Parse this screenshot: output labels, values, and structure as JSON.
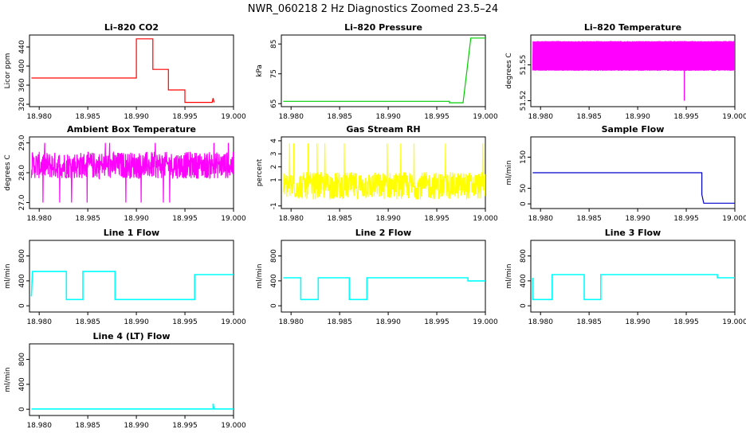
{
  "figure": {
    "title": "NWR_060218  2 Hz Diagnostics Zoomed 23.5–24"
  },
  "chart_data": [
    {
      "type": "line",
      "title": "Li–820 CO2",
      "ylabel": "Licor ppm",
      "xlim": [
        18.979,
        19.0
      ],
      "ylim": [
        315,
        465
      ],
      "xticks": [
        "18.980",
        "18.985",
        "18.990",
        "18.995",
        "19.000"
      ],
      "yticks": [
        "320",
        "360",
        "400",
        "440"
      ],
      "color": "#ff0000",
      "series": [
        {
          "x": [
            18.9792,
            18.99,
            18.99,
            18.9917,
            18.9917,
            18.9933,
            18.9933,
            18.995,
            18.995,
            18.9978,
            18.9979,
            18.998
          ],
          "y": [
            375,
            375,
            457,
            457,
            393,
            393,
            350,
            350,
            324,
            324,
            333,
            324
          ]
        }
      ]
    },
    {
      "type": "line",
      "title": "Li–820 Pressure",
      "ylabel": "kPa",
      "xlim": [
        18.979,
        19.0
      ],
      "ylim": [
        64,
        88
      ],
      "xticks": [
        "18.980",
        "18.985",
        "18.990",
        "18.995",
        "19.000"
      ],
      "yticks": [
        "65",
        "75",
        "85"
      ],
      "color": "#00cc00",
      "series": [
        {
          "x": [
            18.9792,
            18.9963,
            18.9963,
            18.9977,
            18.9981,
            18.9985,
            19.0
          ],
          "y": [
            65.8,
            65.8,
            65.3,
            65.3,
            76,
            87,
            87
          ]
        }
      ]
    },
    {
      "type": "line",
      "title": "Li–820 Temperature",
      "ylabel": "degrees C",
      "xlim": [
        18.979,
        19.0
      ],
      "ylim": [
        51.515,
        51.575
      ],
      "xticks": [
        "18.980",
        "18.985",
        "18.990",
        "18.995",
        "19.000"
      ],
      "yticks": [
        "51.52",
        "51.55"
      ],
      "color": "#ff00ff",
      "series": [
        {
          "x": [
            18.9792,
            19.0
          ],
          "y": [
            51.545,
            51.57
          ]
        }
      ]
    },
    {
      "type": "line",
      "title": "Ambient Box Temperature",
      "ylabel": "degrees C",
      "xlim": [
        18.979,
        19.0
      ],
      "ylim": [
        26.8,
        29.2
      ],
      "xticks": [
        "18.980",
        "18.985",
        "18.990",
        "18.995",
        "19.000"
      ],
      "yticks": [
        "27.0",
        "28.0",
        "29.0"
      ],
      "color": "#ff00ff",
      "series": [
        {
          "x": [
            18.9792,
            19.0
          ],
          "y": [
            27.8,
            28.7
          ]
        }
      ]
    },
    {
      "type": "line",
      "title": "Gas Stream RH",
      "ylabel": "percent",
      "xlim": [
        18.979,
        19.0
      ],
      "ylim": [
        -1.2,
        4.3
      ],
      "xticks": [
        "18.980",
        "18.985",
        "18.990",
        "18.995",
        "19.000"
      ],
      "yticks": [
        "-1",
        "1",
        "2",
        "3",
        "4"
      ],
      "color": "#ffff00",
      "series": [
        {
          "x": [
            18.9792,
            19.0
          ],
          "y": [
            -0.5,
            1.6
          ]
        }
      ]
    },
    {
      "type": "line",
      "title": "Sample Flow",
      "ylabel": "ml/min",
      "xlim": [
        18.979,
        19.0
      ],
      "ylim": [
        -15,
        215
      ],
      "xticks": [
        "18.980",
        "18.985",
        "18.990",
        "18.995",
        "19.000"
      ],
      "yticks": [
        "0",
        "50",
        "150"
      ],
      "color": "#0000cc",
      "series": [
        {
          "x": [
            18.9792,
            18.9966,
            18.9966,
            18.9968,
            19.0
          ],
          "y": [
            100,
            100,
            30,
            2,
            2
          ]
        }
      ]
    },
    {
      "type": "line",
      "title": "Line 1 Flow",
      "ylabel": "ml/min",
      "xlim": [
        18.979,
        19.0
      ],
      "ylim": [
        -100,
        1050
      ],
      "xticks": [
        "18.980",
        "18.985",
        "18.990",
        "18.995",
        "19.000"
      ],
      "yticks": [
        "0",
        "400",
        "800"
      ],
      "color": "#00ffff",
      "series": [
        {
          "x": [
            18.9792,
            18.9793,
            18.9828,
            18.9828,
            18.9845,
            18.9845,
            18.9878,
            18.9878,
            18.996,
            18.996,
            19.0
          ],
          "y": [
            150,
            550,
            550,
            100,
            100,
            550,
            550,
            100,
            100,
            500,
            500
          ]
        }
      ]
    },
    {
      "type": "line",
      "title": "Line 2 Flow",
      "ylabel": "ml/min",
      "xlim": [
        18.979,
        19.0
      ],
      "ylim": [
        -100,
        1050
      ],
      "xticks": [
        "18.980",
        "18.985",
        "18.990",
        "18.995",
        "19.000"
      ],
      "yticks": [
        "0",
        "400",
        "800"
      ],
      "color": "#00ffff",
      "series": [
        {
          "x": [
            18.9792,
            18.981,
            18.981,
            18.9828,
            18.9828,
            18.986,
            18.986,
            18.9878,
            18.9878,
            18.9982,
            18.9982,
            19.0
          ],
          "y": [
            450,
            450,
            100,
            100,
            450,
            450,
            100,
            100,
            450,
            450,
            400,
            400
          ]
        }
      ]
    },
    {
      "type": "line",
      "title": "Line 3 Flow",
      "ylabel": "ml/min",
      "xlim": [
        18.979,
        19.0
      ],
      "ylim": [
        -100,
        1050
      ],
      "xticks": [
        "18.980",
        "18.985",
        "18.990",
        "18.995",
        "19.000"
      ],
      "yticks": [
        "0",
        "400",
        "800"
      ],
      "color": "#00ffff",
      "series": [
        {
          "x": [
            18.9792,
            18.9792,
            18.9812,
            18.9812,
            18.9845,
            18.9845,
            18.9862,
            18.9862,
            18.9982,
            18.9982,
            19.0
          ],
          "y": [
            450,
            100,
            100,
            500,
            500,
            100,
            100,
            500,
            500,
            450,
            450
          ]
        }
      ]
    },
    {
      "type": "line",
      "title": "Line 4 (LT) Flow",
      "ylabel": "ml/min",
      "xlim": [
        18.979,
        19.0
      ],
      "ylim": [
        -100,
        1050
      ],
      "xticks": [
        "18.980",
        "18.985",
        "18.990",
        "18.995",
        "19.000"
      ],
      "yticks": [
        "0",
        "400",
        "800"
      ],
      "color": "#00ffff",
      "series": [
        {
          "x": [
            18.9792,
            18.9979,
            18.9979,
            18.998,
            19.0
          ],
          "y": [
            5,
            5,
            90,
            5,
            5
          ]
        }
      ]
    }
  ]
}
